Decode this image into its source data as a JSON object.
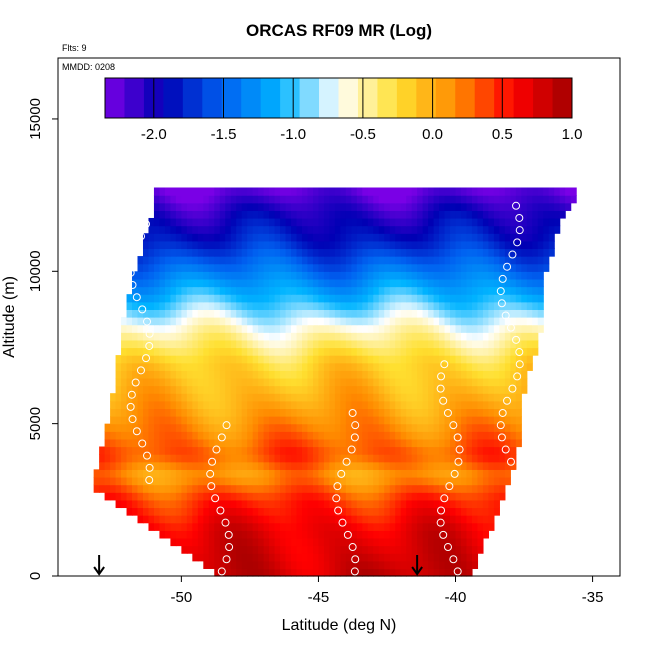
{
  "chart_data": {
    "type": "heatmap",
    "title": "ORCAS RF09 MR (Log)",
    "xlabel": "Latitude (deg N)",
    "ylabel": "Altitude (m)",
    "notes": {
      "flights": "Flts: 9",
      "date": "MMDD: 0208"
    },
    "xlim": [
      -54.5,
      -34
    ],
    "ylim": [
      0,
      17000
    ],
    "x_ticks": [
      -50,
      -45,
      -40,
      -35
    ],
    "x_tick_labels": [
      "-50",
      "-45",
      "-40",
      "-35"
    ],
    "y_ticks": [
      0,
      5000,
      10000,
      15000
    ],
    "y_tick_labels": [
      "0",
      "5000",
      "10000",
      "15000"
    ],
    "colorbar": {
      "range": [
        -2.35,
        1.0
      ],
      "ticks": [
        -2.0,
        -1.5,
        -1.0,
        -0.5,
        0.0,
        0.5,
        1.0
      ],
      "tick_labels": [
        "-2.0",
        "-1.5",
        "-1.0",
        "-0.5",
        "0.0",
        "0.5",
        "1.0"
      ],
      "colors": [
        "#7a00e6",
        "#0000b4",
        "#0060f0",
        "#00b4ff",
        "#ffffff",
        "#ffe030",
        "#ff8c00",
        "#ff0000",
        "#a00000"
      ]
    },
    "cell_size": {
      "lat_deg": 0.2,
      "alt_m": 250
    },
    "domain_edges": [
      {
        "alt": 0,
        "lat_min": -48.7,
        "lat_max": -39.4
      },
      {
        "alt": 3000,
        "lat_min": -53.3,
        "lat_max": -38.1
      },
      {
        "alt": 4500,
        "lat_min": -52.8,
        "lat_max": -37.6
      },
      {
        "alt": 6000,
        "lat_min": -52.5,
        "lat_max": -37.5
      },
      {
        "alt": 8000,
        "lat_min": -52.2,
        "lat_max": -36.9
      },
      {
        "alt": 10000,
        "lat_min": -51.7,
        "lat_max": -36.7
      },
      {
        "alt": 12000,
        "lat_min": -51.0,
        "lat_max": -36.0
      },
      {
        "alt": 12400,
        "lat_min": -51.0,
        "lat_max": -35.6
      }
    ],
    "value_profile": [
      {
        "alt": 0,
        "value": 0.82
      },
      {
        "alt": 1500,
        "value": 0.68
      },
      {
        "alt": 2500,
        "value": 0.45
      },
      {
        "alt": 3300,
        "value": 0.1
      },
      {
        "alt": 4000,
        "value": 0.35
      },
      {
        "alt": 5500,
        "value": 0.05
      },
      {
        "alt": 7000,
        "value": -0.2
      },
      {
        "alt": 8000,
        "value": -0.55
      },
      {
        "alt": 9000,
        "value": -1.0
      },
      {
        "alt": 10000,
        "value": -1.4
      },
      {
        "alt": 11000,
        "value": -1.8
      },
      {
        "alt": 12000,
        "value": -2.05
      },
      {
        "alt": 12700,
        "value": -2.3
      }
    ],
    "profile_points": [
      {
        "lat": -48.6,
        "alt_min": 0,
        "alt_max": 5000
      },
      {
        "lat": -44.0,
        "alt_min": 0,
        "alt_max": 5500
      },
      {
        "lat": -40.2,
        "alt_min": 0,
        "alt_max": 7000
      },
      {
        "lat": -51.5,
        "alt_min": 3000,
        "alt_max": 12000
      },
      {
        "lat": -38.0,
        "alt_min": 2800,
        "alt_max": 12500
      }
    ],
    "markers": [
      {
        "lat": -53.0,
        "alt": 0,
        "type": "down-arrow"
      },
      {
        "lat": -41.4,
        "alt": 0,
        "type": "down-arrow"
      }
    ]
  }
}
